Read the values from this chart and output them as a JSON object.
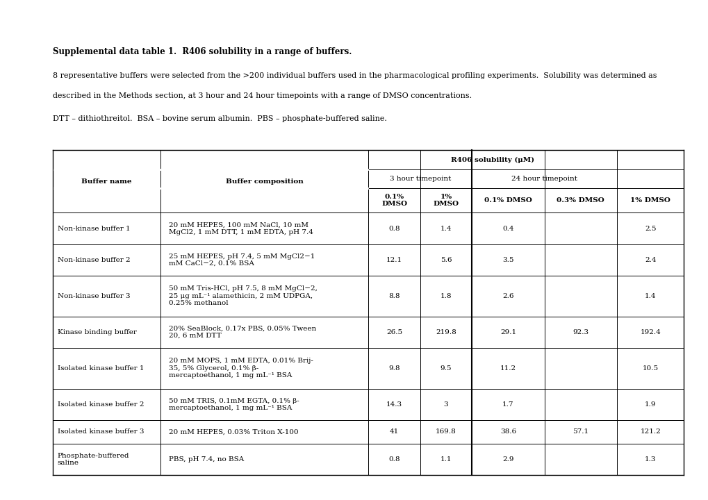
{
  "title": "Supplemental data table 1.  R406 solubility in a range of buffers.",
  "paragraph1": "8 representative buffers were selected from the >200 individual buffers used in the pharmacological profiling experiments.  Solubility was determined as",
  "paragraph2": "described in the Methods section, at 3 hour and 24 hour timepoints with a range of DMSO concentrations.",
  "paragraph3": "DTT – dithiothreitol.  BSA – bovine serum albumin.  PBS – phosphate-buffered saline.",
  "rows": [
    {
      "name": "Non-kinase buffer 1",
      "composition": "20 mM HEPES, 100 mM NaCl, 10 mM\nMgCl2, 1 mM DTT, 1 mM EDTA, pH 7.4",
      "v1": "0.8",
      "v2": "1.4",
      "v3": "0.4",
      "v4": "",
      "v5": "2.5"
    },
    {
      "name": "Non-kinase buffer 2",
      "composition": "25 mM HEPES, pH 7.4, 5 mM MgCl2−1\nmM CaCl−2, 0.1% BSA",
      "v1": "12.1",
      "v2": "5.6",
      "v3": "3.5",
      "v4": "",
      "v5": "2.4"
    },
    {
      "name": "Non-kinase buffer 3",
      "composition": "50 mM Tris-HCl, pH 7.5, 8 mM MgCl−2,\n25 μg mL⁻¹ alamethicin, 2 mM UDPGA,\n0.25% methanol",
      "v1": "8.8",
      "v2": "1.8",
      "v3": "2.6",
      "v4": "",
      "v5": "1.4"
    },
    {
      "name": "Kinase binding buffer",
      "composition": "20% SeaBlock, 0.17x PBS, 0.05% Tween\n20, 6 mM DTT",
      "v1": "26.5",
      "v2": "219.8",
      "v3": "29.1",
      "v4": "92.3",
      "v5": "192.4"
    },
    {
      "name": "Isolated kinase buffer 1",
      "composition": "20 mM MOPS, 1 mM EDTA, 0.01% Brij-\n35, 5% Glycerol, 0.1% β-\nmercaptoethanol, 1 mg mL⁻¹ BSA",
      "v1": "9.8",
      "v2": "9.5",
      "v3": "11.2",
      "v4": "",
      "v5": "10.5"
    },
    {
      "name": "Isolated kinase buffer 2",
      "composition": "50 mM TRIS, 0.1mM EGTA, 0.1% β-\nmercaptoethanol, 1 mg mL⁻¹ BSA",
      "v1": "14.3",
      "v2": "3",
      "v3": "1.7",
      "v4": "",
      "v5": "1.9"
    },
    {
      "name": "Isolated kinase buffer 3",
      "composition": "20 mM HEPES, 0.03% Triton X-100",
      "v1": "41",
      "v2": "169.8",
      "v3": "38.6",
      "v4": "57.1",
      "v5": "121.2"
    },
    {
      "name": "Phosphate-buffered\nsaline",
      "composition": "PBS, pH 7.4, no BSA",
      "v1": "0.8",
      "v2": "1.1",
      "v3": "2.9",
      "v4": "",
      "v5": "1.3"
    }
  ],
  "background_color": "#ffffff",
  "text_color": "#000000",
  "line_color": "#000000",
  "font_size_title": 8.5,
  "font_size_body": 8.0,
  "font_size_table": 7.5,
  "font_size_header": 7.5
}
